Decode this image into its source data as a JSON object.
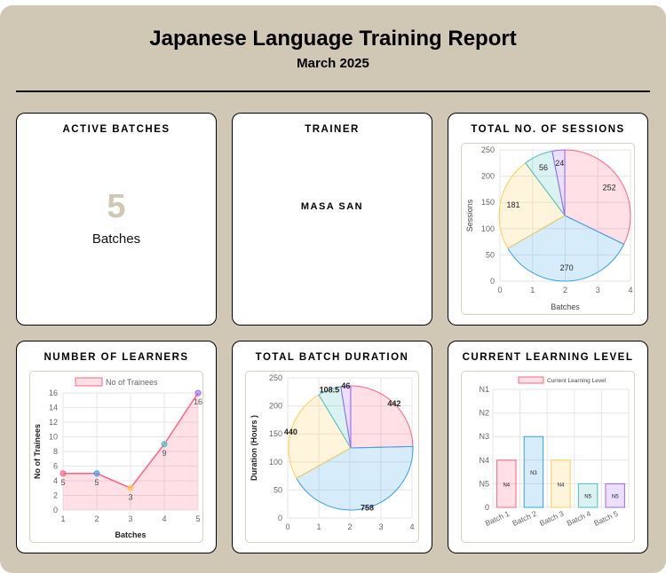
{
  "report": {
    "title": "Japanese Language Training Report",
    "subtitle": "March 2025"
  },
  "cards": {
    "active_batches": {
      "title": "ACTIVE BATCHES",
      "value": "5",
      "unit": "Batches"
    },
    "trainer": {
      "title": "TRAINER",
      "name": "MASA SAN"
    },
    "sessions": {
      "title": "TOTAL NO. OF SESSIONS"
    },
    "learners": {
      "title": "NUMBER OF LEARNERS"
    },
    "duration": {
      "title": "TOTAL BATCH DURATION"
    },
    "level": {
      "title": "CURRENT LEARNING LEVEL"
    }
  },
  "colors": {
    "page_bg": "#d1c7b5",
    "pink": "#ff6384",
    "blue": "#36a2eb",
    "yellow": "#ffcd56",
    "teal": "#4bc0c0",
    "purple": "#9966ff"
  },
  "chart_data": [
    {
      "id": "sessions",
      "type": "pie",
      "values": [
        252,
        270,
        181,
        56,
        24
      ],
      "slice_colors": [
        "#ff6384",
        "#36a2eb",
        "#ffcd56",
        "#4bc0c0",
        "#9966ff"
      ],
      "xlabel": "Batches",
      "ylabel": "Sessions",
      "x_ticks": [
        "0",
        "1",
        "2",
        "3",
        "4"
      ],
      "y_ticks": [
        "0",
        "50",
        "100",
        "150",
        "200",
        "250"
      ],
      "grid": true
    },
    {
      "id": "learners",
      "type": "line",
      "x": [
        1,
        2,
        3,
        4,
        5
      ],
      "series": [
        {
          "name": "No of Trainees",
          "values": [
            5,
            5,
            3,
            9,
            16
          ],
          "color": "#ff6384"
        }
      ],
      "point_colors": [
        "#ff6384",
        "#36a2eb",
        "#ffcd56",
        "#4bc0c0",
        "#9966ff"
      ],
      "xlabel": "Batches",
      "ylabel": "No of Trainees",
      "ylim": [
        0,
        16
      ],
      "x_ticks": [
        "1",
        "2",
        "3",
        "4",
        "5"
      ],
      "y_ticks": [
        "0",
        "2",
        "4",
        "6",
        "8",
        "10",
        "12",
        "14",
        "16"
      ],
      "legend": "top",
      "grid": true
    },
    {
      "id": "duration",
      "type": "pie",
      "values": [
        442,
        758,
        440,
        108.5,
        46
      ],
      "slice_colors": [
        "#ff6384",
        "#36a2eb",
        "#ffcd56",
        "#4bc0c0",
        "#9966ff"
      ],
      "ylabel": "Duration (Hours )",
      "x_ticks": [
        "0",
        "1",
        "2",
        "3",
        "4"
      ],
      "y_ticks": [
        "0",
        "50",
        "100",
        "150",
        "200",
        "250"
      ],
      "grid": true
    },
    {
      "id": "level",
      "type": "bar",
      "categories": [
        "Batch 1",
        "Batch 2",
        "Batch 3",
        "Batch 4",
        "Batch 5"
      ],
      "series": [
        {
          "name": "Current Learning Level",
          "values": [
            "N4",
            "N3",
            "N4",
            "N5",
            "N5"
          ]
        }
      ],
      "levels": [
        "N5",
        "N4",
        "N3",
        "N2",
        "N1"
      ],
      "bar_colors": [
        "#ff6384",
        "#36a2eb",
        "#ffcd56",
        "#4bc0c0",
        "#9966ff"
      ],
      "legend": "top",
      "grid": true
    }
  ]
}
